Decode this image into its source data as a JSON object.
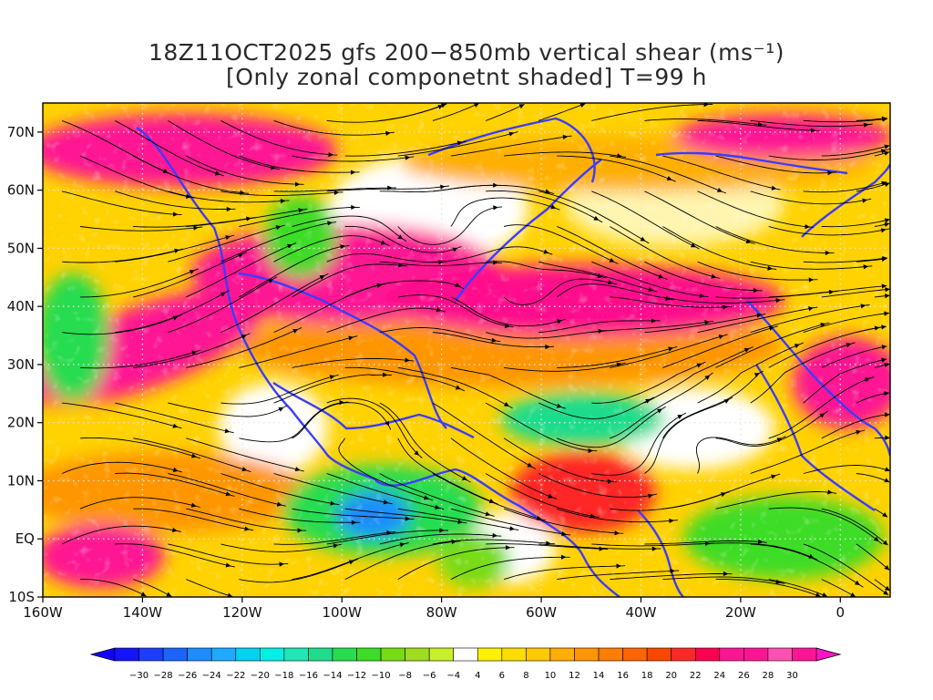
{
  "title": {
    "line1": "18Z11OCT2025 gfs 200−850mb vertical shear (ms⁻¹)",
    "line2": "[Only zonal componetnt shaded] T=99 h"
  },
  "map": {
    "lat_labels": [
      "70N",
      "60N",
      "50N",
      "40N",
      "30N",
      "20N",
      "10N",
      "EQ",
      "10S"
    ],
    "lon_labels": [
      "160W",
      "140W",
      "120W",
      "100W",
      "80W",
      "60W",
      "40W",
      "20W",
      "0"
    ],
    "lat_values": [
      70,
      60,
      50,
      40,
      30,
      20,
      10,
      0,
      -10
    ],
    "lon_values": [
      -160,
      -140,
      -120,
      -100,
      -80,
      -60,
      -40,
      -20,
      0
    ],
    "lon_range": [
      -160,
      10
    ],
    "lat_range": [
      -10,
      75
    ],
    "gridlines": "dotted"
  },
  "colorbar": {
    "labels": [
      "−30",
      "−28",
      "−26",
      "−24",
      "−22",
      "−20",
      "−18",
      "−16",
      "−14",
      "−12",
      "−10",
      "−8",
      "−6",
      "−4",
      "4",
      "6",
      "8",
      "10",
      "12",
      "14",
      "16",
      "18",
      "20",
      "22",
      "24",
      "26",
      "28",
      "30"
    ],
    "colors": [
      "#1414ff",
      "#1e3cff",
      "#1c64ff",
      "#1e8cff",
      "#1eaaff",
      "#00d2f0",
      "#00f0e6",
      "#1ee6b4",
      "#1edc8c",
      "#28dc50",
      "#3cdc28",
      "#78dc14",
      "#a0dc1e",
      "#c8f028",
      "#ffffff",
      "#fff000",
      "#ffdc00",
      "#ffc800",
      "#ffaf00",
      "#ff9600",
      "#ff7d00",
      "#ff6400",
      "#ff4600",
      "#ff2828",
      "#ff0050",
      "#ff1493",
      "#ff1493",
      "#ff50b4",
      "#ff1493"
    ]
  }
}
